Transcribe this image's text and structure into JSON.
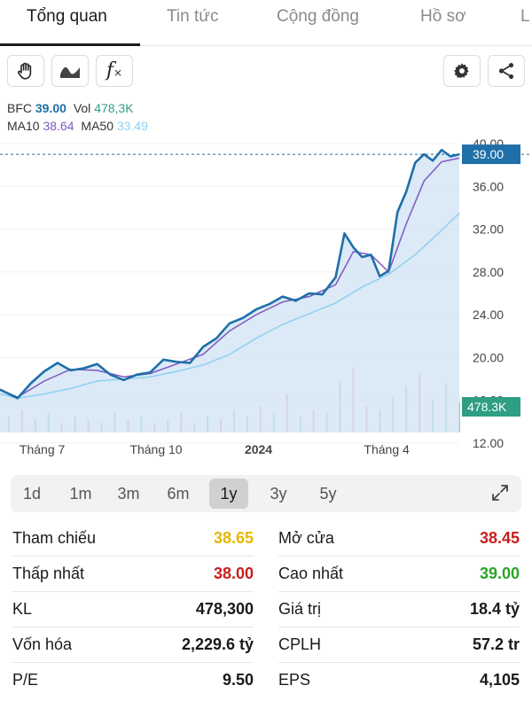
{
  "tabs": [
    "Tổng quan",
    "Tin tức",
    "Cộng đồng",
    "Hồ sơ",
    "L"
  ],
  "toolbar": {
    "icons": [
      "hand-icon",
      "wave-icon",
      "function-icon",
      "gear-icon",
      "share-icon"
    ],
    "function_glyph": "f"
  },
  "legend": {
    "symbol": "BFC",
    "price": "39.00",
    "vol_label": "Vol",
    "vol": "478,3K",
    "ma10_label": "MA10",
    "ma10": "38.64",
    "ma50_label": "MA50",
    "ma50": "33.49"
  },
  "colors": {
    "price_line": "#1f6fa8",
    "price_area": "#cfe3f3",
    "ma10": "#7e57c2",
    "ma50": "#8fd0f0",
    "vol_up": "#9fd3a8",
    "vol_down": "#f2a7a7",
    "up": "#2aa52a",
    "down": "#c81e1e",
    "ref": "#e6b800",
    "badge": "#1f6fa8",
    "vol_badge": "#2e9e84"
  },
  "chart_data": {
    "type": "line",
    "y_ticks": [
      "40.00",
      "36.00",
      "32.00",
      "28.00",
      "24.00",
      "20.00",
      "16.00",
      "12.00"
    ],
    "ylim": [
      12,
      40
    ],
    "x_ticks": [
      "Tháng 7",
      "Tháng 10",
      "2024",
      "Tháng 4"
    ],
    "x_tick_positions": [
      0.0,
      25.0,
      51.0,
      78.0
    ],
    "x_range": [
      -4,
      100
    ],
    "price_badge": "39.00",
    "volume_badge": "478.3K",
    "series": [
      {
        "name": "BFC",
        "x": [
          -4,
          0,
          3,
          6,
          9,
          12,
          15,
          18,
          21,
          24,
          27,
          30,
          33,
          36,
          39,
          42,
          45,
          48,
          51,
          54,
          57,
          60,
          63,
          66,
          69,
          72,
          74,
          76,
          78,
          80,
          82,
          84,
          86,
          88,
          90,
          92,
          94,
          96,
          98,
          100
        ],
        "values": [
          17.0,
          16.2,
          17.6,
          18.7,
          19.5,
          18.8,
          19.0,
          19.4,
          18.4,
          17.9,
          18.4,
          18.6,
          19.8,
          19.6,
          19.5,
          21.0,
          21.8,
          23.2,
          23.7,
          24.5,
          25.0,
          25.7,
          25.3,
          26.0,
          25.9,
          27.5,
          31.6,
          30.3,
          29.4,
          29.6,
          27.6,
          28.1,
          33.6,
          35.5,
          38.2,
          39.0,
          38.4,
          39.4,
          38.8,
          39.0
        ]
      },
      {
        "name": "MA10",
        "x": [
          -4,
          0,
          6,
          12,
          18,
          24,
          30,
          36,
          42,
          48,
          54,
          60,
          66,
          72,
          76,
          80,
          84,
          88,
          92,
          96,
          100
        ],
        "values": [
          17.0,
          16.3,
          17.8,
          18.9,
          18.8,
          18.2,
          18.5,
          19.4,
          20.3,
          22.5,
          24.0,
          25.2,
          25.7,
          26.8,
          29.9,
          29.6,
          28.0,
          32.5,
          36.5,
          38.3,
          38.64
        ]
      },
      {
        "name": "MA50",
        "x": [
          -4,
          0,
          6,
          12,
          18,
          24,
          30,
          36,
          42,
          48,
          54,
          60,
          66,
          72,
          78,
          84,
          90,
          96,
          100
        ],
        "values": [
          16.6,
          16.2,
          16.6,
          17.1,
          17.8,
          18.0,
          18.2,
          18.7,
          19.3,
          20.3,
          21.8,
          23.1,
          24.1,
          25.1,
          26.6,
          27.8,
          29.6,
          31.9,
          33.49
        ]
      }
    ],
    "volume": {
      "x": [
        -2,
        1,
        4,
        7,
        10,
        13,
        16,
        19,
        22,
        25,
        28,
        31,
        34,
        37,
        40,
        43,
        46,
        49,
        52,
        55,
        58,
        61,
        64,
        67,
        70,
        73,
        76,
        79,
        82,
        85,
        88,
        91,
        94,
        97,
        100
      ],
      "values": [
        0.5,
        0.7,
        0.4,
        0.6,
        0.3,
        0.5,
        0.4,
        0.3,
        0.6,
        0.4,
        0.5,
        0.3,
        0.4,
        0.6,
        0.3,
        0.5,
        0.4,
        0.7,
        0.5,
        0.8,
        0.6,
        1.2,
        0.5,
        0.7,
        0.6,
        1.6,
        2.0,
        0.8,
        0.7,
        1.1,
        1.4,
        1.8,
        1.0,
        1.5,
        0.95
      ],
      "up": [
        true,
        false,
        true,
        true,
        false,
        true,
        false,
        true,
        true,
        false,
        true,
        false,
        true,
        false,
        true,
        true,
        false,
        true,
        true,
        false,
        true,
        false,
        true,
        false,
        true,
        true,
        false,
        false,
        true,
        true,
        true,
        false,
        true,
        true,
        true
      ]
    }
  },
  "ranges": [
    "1d",
    "1m",
    "3m",
    "6m",
    "1y",
    "3y",
    "5y"
  ],
  "active_range": "1y",
  "stats": {
    "left": [
      {
        "label": "Tham chiếu",
        "value": "38.65",
        "tone": "ref"
      },
      {
        "label": "Thấp nhất",
        "value": "38.00",
        "tone": "down"
      },
      {
        "label": "KL",
        "value": "478,300",
        "tone": "plain"
      },
      {
        "label": "Vốn hóa",
        "value": "2,229.6 tỷ",
        "tone": "plain"
      },
      {
        "label": "P/E",
        "value": "9.50",
        "tone": "plain"
      }
    ],
    "right": [
      {
        "label": "Mở cửa",
        "value": "38.45",
        "tone": "down"
      },
      {
        "label": "Cao nhất",
        "value": "39.00",
        "tone": "up"
      },
      {
        "label": "Giá trị",
        "value": "18.4 tỷ",
        "tone": "plain"
      },
      {
        "label": "CPLH",
        "value": "57.2 tr",
        "tone": "plain"
      },
      {
        "label": "EPS",
        "value": "4,105",
        "tone": "plain"
      }
    ]
  }
}
